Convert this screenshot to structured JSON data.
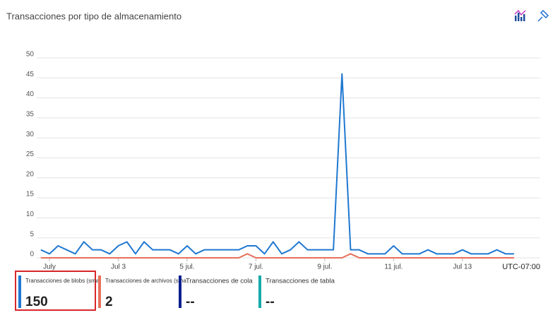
{
  "chart_data": {
    "type": "line",
    "title": "Transacciones por tipo de almacenamiento",
    "x": [
      0.75,
      1,
      1.25,
      1.5,
      1.75,
      2,
      2.25,
      2.5,
      2.75,
      3,
      3.25,
      3.5,
      3.75,
      4,
      4.25,
      4.5,
      4.75,
      5,
      5.25,
      5.5,
      5.75,
      6,
      6.25,
      6.5,
      6.75,
      7,
      7.25,
      7.5,
      7.75,
      8,
      8.25,
      8.5,
      8.75,
      9,
      9.25,
      9.5,
      9.75,
      10,
      10.25,
      10.5,
      10.75,
      11,
      11.25,
      11.5,
      11.75,
      12,
      12.25,
      12.5,
      12.75,
      13,
      13.25,
      13.5,
      13.75,
      14,
      14.25,
      14.5
    ],
    "xlim": [
      0.63,
      15.26
    ],
    "xticks": [
      {
        "value": 1,
        "label": "July"
      },
      {
        "value": 3,
        "label": "Jul 3"
      },
      {
        "value": 5,
        "label": "5 jul."
      },
      {
        "value": 7,
        "label": "7 jul."
      },
      {
        "value": 9,
        "label": "9 jul."
      },
      {
        "value": 11,
        "label": "11 jul."
      },
      {
        "value": 13,
        "label": "Jul 13"
      }
    ],
    "timezone": "UTC-07:00",
    "ylim": [
      0,
      50
    ],
    "yticks": [
      0,
      5,
      10,
      15,
      20,
      25,
      30,
      35,
      40,
      45,
      50
    ],
    "grid": true,
    "series": [
      {
        "name": "Transacciones de blobs (sma",
        "color": "#1f78d1",
        "summary": 150,
        "values": [
          2,
          1,
          3,
          2,
          1,
          4,
          2,
          2,
          1,
          3,
          4,
          1,
          4,
          2,
          2,
          2,
          1,
          3,
          1,
          2,
          2,
          2,
          2,
          2,
          3,
          3,
          1,
          4,
          1,
          2,
          4,
          2,
          2,
          2,
          2,
          46,
          2,
          2,
          1,
          1,
          1,
          3,
          1,
          1,
          1,
          2,
          1,
          1,
          1,
          2,
          1,
          1,
          1,
          2,
          1,
          1
        ]
      },
      {
        "name": "Transacciones de archivos (sma",
        "color": "#e8705a",
        "summary": 2,
        "values": [
          0,
          0,
          0,
          0,
          0,
          0,
          0,
          0,
          0,
          0,
          0,
          0,
          0,
          0,
          0,
          0,
          0,
          0,
          0,
          0,
          0,
          0,
          0,
          0,
          1,
          0,
          0,
          0,
          0,
          0,
          0,
          0,
          0,
          0,
          0,
          0,
          1,
          0,
          0,
          0,
          0,
          0,
          0,
          0,
          0,
          0,
          0,
          0,
          0,
          0,
          0,
          0,
          0,
          0,
          0,
          0
        ]
      },
      {
        "name": "Transacciones de cola",
        "color": "#0a1f8f",
        "summary": "--"
      },
      {
        "name": "Transacciones de tabla",
        "color": "#18a9a9",
        "summary": "--"
      }
    ]
  }
}
